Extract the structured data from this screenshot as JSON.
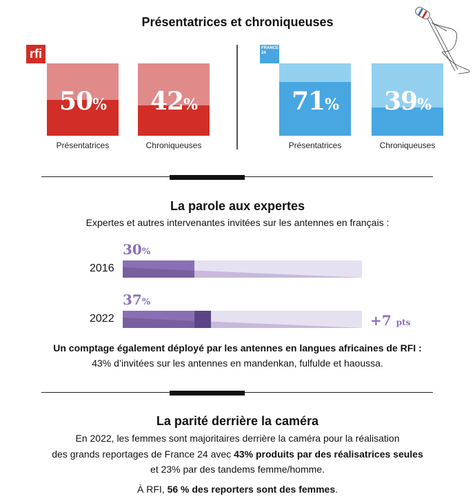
{
  "section1": {
    "title": "Présentatrices et chroniqueuses",
    "rfi": {
      "logo_text": "rfi",
      "color_light": "#e08a8a",
      "color_dark": "#d12e27",
      "items": [
        {
          "label": "Présentatrices",
          "value": 50,
          "value_text": "50",
          "unit": "%"
        },
        {
          "label": "Chroniqueuses",
          "value": 42,
          "value_text": "42",
          "unit": "%"
        }
      ]
    },
    "france24": {
      "logo_text": "FRANCE 24",
      "color_light": "#93d0f0",
      "color_dark": "#48a6e1",
      "items": [
        {
          "label": "Présentatrices",
          "value": 71,
          "value_text": "71",
          "unit": "%"
        },
        {
          "label": "Chroniqueuses",
          "value": 39,
          "value_text": "39",
          "unit": "%"
        }
      ]
    }
  },
  "section2": {
    "title": "La parole aux expertes",
    "subtitle": "Expertes et autres intervenantes invitées sur les antennes en français :",
    "bars": [
      {
        "year": "2016",
        "value": 30,
        "value_text": "30",
        "unit": "%"
      },
      {
        "year": "2022",
        "value": 37,
        "value_text": "37",
        "unit": "%"
      }
    ],
    "delta_value": "+7",
    "delta_unit": "pts",
    "note_bold": "Un comptage également déployé par les antennes en langues africaines de RFI :",
    "note": "43% d’invitées sur les antennes en mandenkan, fulfulde et haoussa."
  },
  "section3": {
    "title": "La parité derrière la caméra",
    "line1": "En 2022, les femmes sont majoritaires derrière la caméra pour la réalisation",
    "line2_a": "des grands reportages de France 24 avec ",
    "line2_b": "43% produits par des réalisatrices seules",
    "line3": "et 23% par des tandems femme/homme.",
    "line4_a": "À RFI, ",
    "line4_b": "56 % des reporters sont des femmes",
    "line4_c": "."
  }
}
